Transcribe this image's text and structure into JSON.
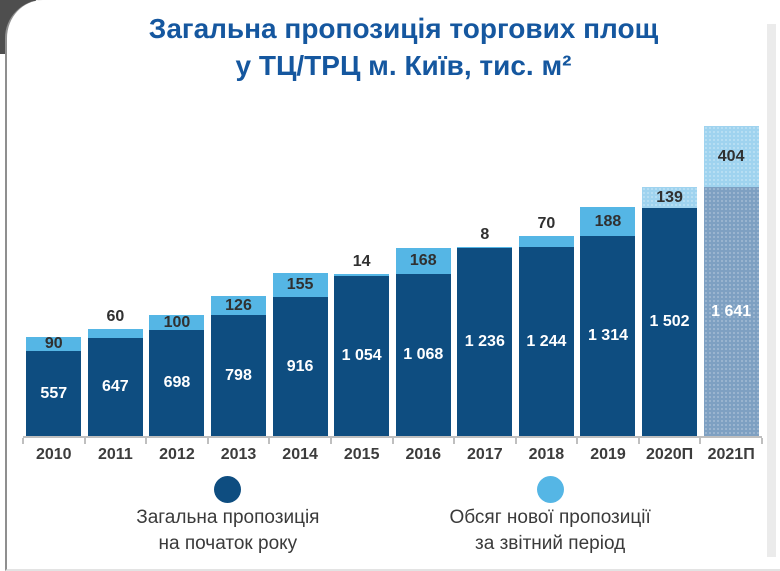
{
  "title": {
    "line1": "Загальна пропозиція торгових площ",
    "line2": "у ТЦ/ТРЦ м. Київ, тис. м²"
  },
  "colors": {
    "base_bar": "#0e4d80",
    "new_bar": "#55b6e5",
    "forecast_new_bar": "#9fd3ef",
    "forecast_base_bar": "#7ea0c2",
    "title_text": "#15579f",
    "axis": "#bfbfbf",
    "label_dark_text": "#303030",
    "label_on_bar_text": "#ffffff"
  },
  "chart_data": {
    "type": "bar",
    "stacked": true,
    "title": "Загальна пропозиція торгових площ у ТЦ/ТРЦ м. Київ, тис. м²",
    "xlabel": "",
    "ylabel": "тис. м²",
    "grid": false,
    "legend_position": "bottom",
    "categories": [
      "2010",
      "2011",
      "2012",
      "2013",
      "2014",
      "2015",
      "2016",
      "2017",
      "2018",
      "2019",
      "2020П",
      "2021П"
    ],
    "series": [
      {
        "name": "Загальна пропозиція на початок року",
        "color": "#0e4d80",
        "values": [
          557,
          647,
          698,
          798,
          916,
          1054,
          1068,
          1236,
          1244,
          1314,
          1502,
          1641
        ],
        "labels": [
          "557",
          "647",
          "698",
          "798",
          "916",
          "1 054",
          "1 068",
          "1 236",
          "1 244",
          "1 314",
          "1 502",
          "1 641"
        ]
      },
      {
        "name": "Обсяг нової пропозиції за звітний період",
        "color": "#55b6e5",
        "values": [
          90,
          60,
          100,
          126,
          155,
          14,
          168,
          8,
          70,
          188,
          139,
          404
        ],
        "labels": [
          "90",
          "60",
          "100",
          "126",
          "155",
          "14",
          "168",
          "8",
          "70",
          "188",
          "139",
          "404"
        ]
      }
    ],
    "forecast": {
      "new_segment_hatched_from_index": 10,
      "base_segment_hatched_from_index": 11
    }
  },
  "legend": {
    "items": [
      {
        "line1": "Загальна пропозиція",
        "line2": "на початок року",
        "color": "#0e4d80"
      },
      {
        "line1": "Обсяг нової пропозиції",
        "line2": "за звітний період",
        "color": "#55b6e5"
      }
    ]
  }
}
